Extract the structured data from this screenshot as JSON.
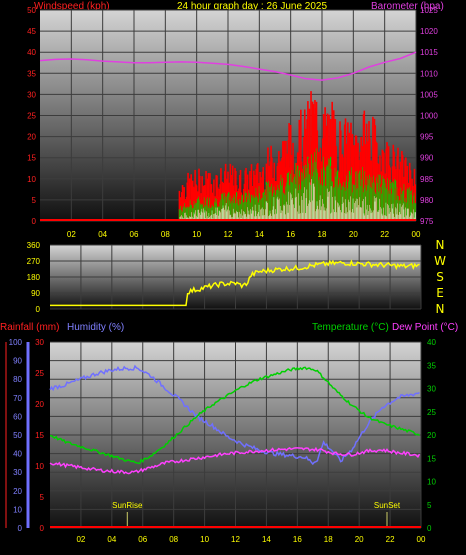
{
  "header": {
    "title": "24 hour graph day : 26 June 2025",
    "left_label": "Windspeed (kph)",
    "right_label": "Barometer (hpa)"
  },
  "colors": {
    "windspeed": "#ff0000",
    "gust": "#ff0000",
    "wind_avg": "#00cc00",
    "wind_min": "#ccffcc",
    "barometer": "#e040e0",
    "direction": "#ffff00",
    "temperature": "#00d000",
    "dewpoint": "#ff40ff",
    "humidity": "#7070ff",
    "rain": "#ff0000",
    "grid": "#3c3c3c"
  },
  "time_axis": [
    "02",
    "04",
    "06",
    "08",
    "10",
    "12",
    "14",
    "16",
    "18",
    "20",
    "22",
    "00"
  ],
  "wind_chart": {
    "type": "bar",
    "xlabel": "",
    "ylabel": "Windspeed (kph)",
    "y2label": "Barometer (hpa)",
    "ylim": [
      0,
      50
    ],
    "y_ticks": [
      0,
      5,
      10,
      15,
      20,
      25,
      30,
      35,
      40,
      45,
      50
    ],
    "y2lim": [
      975,
      1025
    ],
    "y2_ticks": [
      975,
      980,
      985,
      990,
      995,
      1000,
      1005,
      1010,
      1015,
      1020,
      1025
    ],
    "barometer_x": [
      0,
      1,
      2,
      3,
      4,
      5,
      6,
      7,
      8,
      9,
      10,
      11,
      12,
      13,
      14,
      15,
      16,
      17,
      18,
      19,
      20,
      21,
      22,
      23,
      24
    ],
    "barometer_y": [
      1013,
      1013.3,
      1013.4,
      1013.2,
      1012.9,
      1012.7,
      1012.5,
      1012.5,
      1012.6,
      1012.7,
      1012.6,
      1012.4,
      1012.1,
      1011.6,
      1011.0,
      1010.4,
      1009.6,
      1008.7,
      1008.4,
      1008.9,
      1010.0,
      1011.5,
      1012.6,
      1013.5,
      1015.0
    ],
    "gust_profile_x": [
      0,
      8.8,
      8.9,
      10,
      11,
      12,
      13,
      14,
      15,
      16,
      17,
      17.5,
      18,
      18.5,
      19,
      20,
      21,
      21.5,
      22,
      23,
      24
    ],
    "gust_profile_y": [
      0,
      0,
      9,
      11,
      11,
      12,
      11,
      13,
      17,
      21,
      24,
      30,
      24,
      26,
      22,
      21,
      24,
      20,
      18,
      15,
      11
    ],
    "avg_profile_y": [
      0,
      0,
      3,
      5,
      5,
      6,
      6,
      7,
      9,
      11,
      13,
      15,
      13,
      13,
      11,
      11,
      11,
      10,
      9,
      8,
      6
    ],
    "min_profile_y": [
      0,
      0,
      1,
      2,
      2,
      3,
      2,
      3,
      4,
      5,
      6,
      7,
      5,
      6,
      4,
      4,
      4,
      4,
      3,
      3,
      2
    ]
  },
  "dir_chart": {
    "type": "line",
    "ylim": [
      0,
      360
    ],
    "y_ticks": [
      0,
      90,
      180,
      270,
      360
    ],
    "compass_labels": [
      "N",
      "W",
      "S",
      "E",
      "N"
    ],
    "x": [
      0,
      8.8,
      8.81,
      9.5,
      10,
      11,
      12,
      12.5,
      12.8,
      13,
      13.5,
      14,
      15,
      16,
      17,
      18,
      19,
      20,
      21,
      22,
      23,
      24
    ],
    "y": [
      20,
      20,
      95,
      110,
      120,
      140,
      145,
      130,
      150,
      190,
      210,
      215,
      225,
      230,
      245,
      255,
      260,
      255,
      250,
      245,
      240,
      245
    ]
  },
  "temp_chart": {
    "type": "line",
    "left_label": "Rainfall (mm)",
    "humidity_label": "Humidity (%)",
    "temperature_label": "Temperature (°C)",
    "dewpoint_label": "Dew Point (°C)",
    "rain_ylim": [
      0,
      30
    ],
    "rain_ticks": [
      0,
      5,
      10,
      15,
      20,
      25,
      30
    ],
    "hum_ylim": [
      0,
      100
    ],
    "hum_ticks": [
      0,
      10,
      20,
      30,
      40,
      50,
      60,
      70,
      80,
      90,
      100
    ],
    "temp_ylim": [
      0,
      40
    ],
    "temp_ticks": [
      0,
      5,
      10,
      15,
      20,
      25,
      30,
      35,
      40
    ],
    "annotations": [
      {
        "text": "SunRise",
        "x": 5.0
      },
      {
        "text": "SunSet",
        "x": 21.8
      }
    ],
    "temperature_x": [
      0,
      1,
      2,
      3,
      4,
      5,
      5.7,
      6.5,
      7.5,
      8.5,
      9.5,
      10.5,
      11.5,
      12.5,
      13.5,
      14.5,
      15.5,
      16.5,
      17.2,
      17.8,
      18.5,
      19.5,
      20.5,
      21.5,
      22.5,
      23.5,
      24
    ],
    "temperature_y": [
      20,
      18.5,
      17.5,
      16.5,
      15.5,
      14.5,
      14.0,
      15.5,
      18.0,
      21.0,
      24.0,
      26.5,
      28.5,
      30.5,
      32.0,
      33.0,
      34.0,
      34.5,
      34.0,
      32.0,
      29.5,
      26.5,
      24.0,
      22.5,
      21.5,
      20.5,
      20.0
    ],
    "dewpoint_x": [
      0,
      1,
      2,
      3,
      4,
      5,
      5.5,
      6.5,
      7.5,
      8.5,
      9.5,
      10.5,
      11.5,
      12.5,
      13.5,
      14.5,
      15.5,
      16.5,
      17.5,
      18.5,
      19.5,
      20.5,
      21.5,
      22.5,
      23.5,
      24
    ],
    "dewpoint_y": [
      14.0,
      13.5,
      13.0,
      12.5,
      12.2,
      12.0,
      12.0,
      13.0,
      14.0,
      14.5,
      15.0,
      15.5,
      16.0,
      16.3,
      16.6,
      16.8,
      17.0,
      17.0,
      16.8,
      16.0,
      15.8,
      16.5,
      16.8,
      16.2,
      15.8,
      15.5
    ],
    "humidity_x": [
      0,
      1,
      2,
      3,
      4,
      5,
      5.7,
      6.5,
      7.5,
      8.5,
      9.5,
      10.5,
      11.5,
      12.5,
      13.5,
      14.5,
      15.5,
      16.5,
      17,
      17.3,
      17.7,
      18.2,
      18.8,
      19.5,
      20.5,
      21.5,
      22.5,
      23.5,
      24
    ],
    "humidity_y": [
      75,
      77,
      80,
      83,
      85,
      86,
      86,
      82,
      75,
      68,
      60,
      55,
      49,
      45,
      42,
      40,
      39,
      38,
      35,
      37,
      46,
      42,
      36,
      42,
      55,
      65,
      70,
      72,
      73
    ],
    "rain_x": [
      0,
      24
    ],
    "rain_y": [
      0,
      0
    ]
  }
}
